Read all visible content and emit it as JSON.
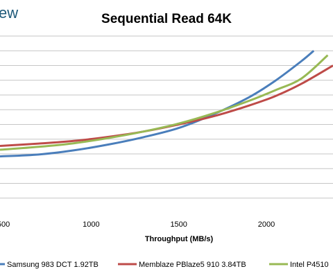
{
  "brand_fragment": "ew",
  "chart_data": {
    "type": "line",
    "title": "Sequential Read 64K",
    "xlabel": "Throughput (MB/s)",
    "ylabel": "",
    "x_ticks": [
      500,
      1000,
      1500,
      2000
    ],
    "xlim": [
      480,
      2380
    ],
    "ylim": [
      0,
      12
    ],
    "y_gridlines": [
      1,
      2,
      3,
      4,
      5,
      6,
      7,
      8,
      9,
      10,
      11,
      12
    ],
    "grid": "horizontal",
    "legend_position": "bottom",
    "series": [
      {
        "name": "Samsung 983 DCT 1.92TB",
        "color": "#4a7ebb",
        "x": [
          480,
          700,
          900,
          1100,
          1300,
          1500,
          1700,
          1900,
          2050,
          2200,
          2270
        ],
        "y": [
          3.83,
          3.96,
          4.24,
          4.64,
          5.14,
          5.76,
          6.7,
          7.84,
          8.96,
          10.3,
          11.0
        ]
      },
      {
        "name": "Memblaze PBlaze5 910 3.84TB",
        "color": "#be4b48",
        "x": [
          480,
          700,
          900,
          1100,
          1300,
          1500,
          1700,
          1900,
          2050,
          2200,
          2380
        ],
        "y": [
          4.54,
          4.7,
          4.88,
          5.16,
          5.52,
          6.0,
          6.56,
          7.28,
          7.92,
          8.76,
          10.0
        ]
      },
      {
        "name": "Intel P4510",
        "color": "#98b954",
        "x": [
          480,
          700,
          900,
          1100,
          1300,
          1500,
          1700,
          1900,
          2050,
          2200,
          2350
        ],
        "y": [
          4.28,
          4.48,
          4.72,
          5.08,
          5.52,
          6.06,
          6.76,
          7.6,
          8.32,
          9.12,
          10.7
        ]
      }
    ]
  }
}
